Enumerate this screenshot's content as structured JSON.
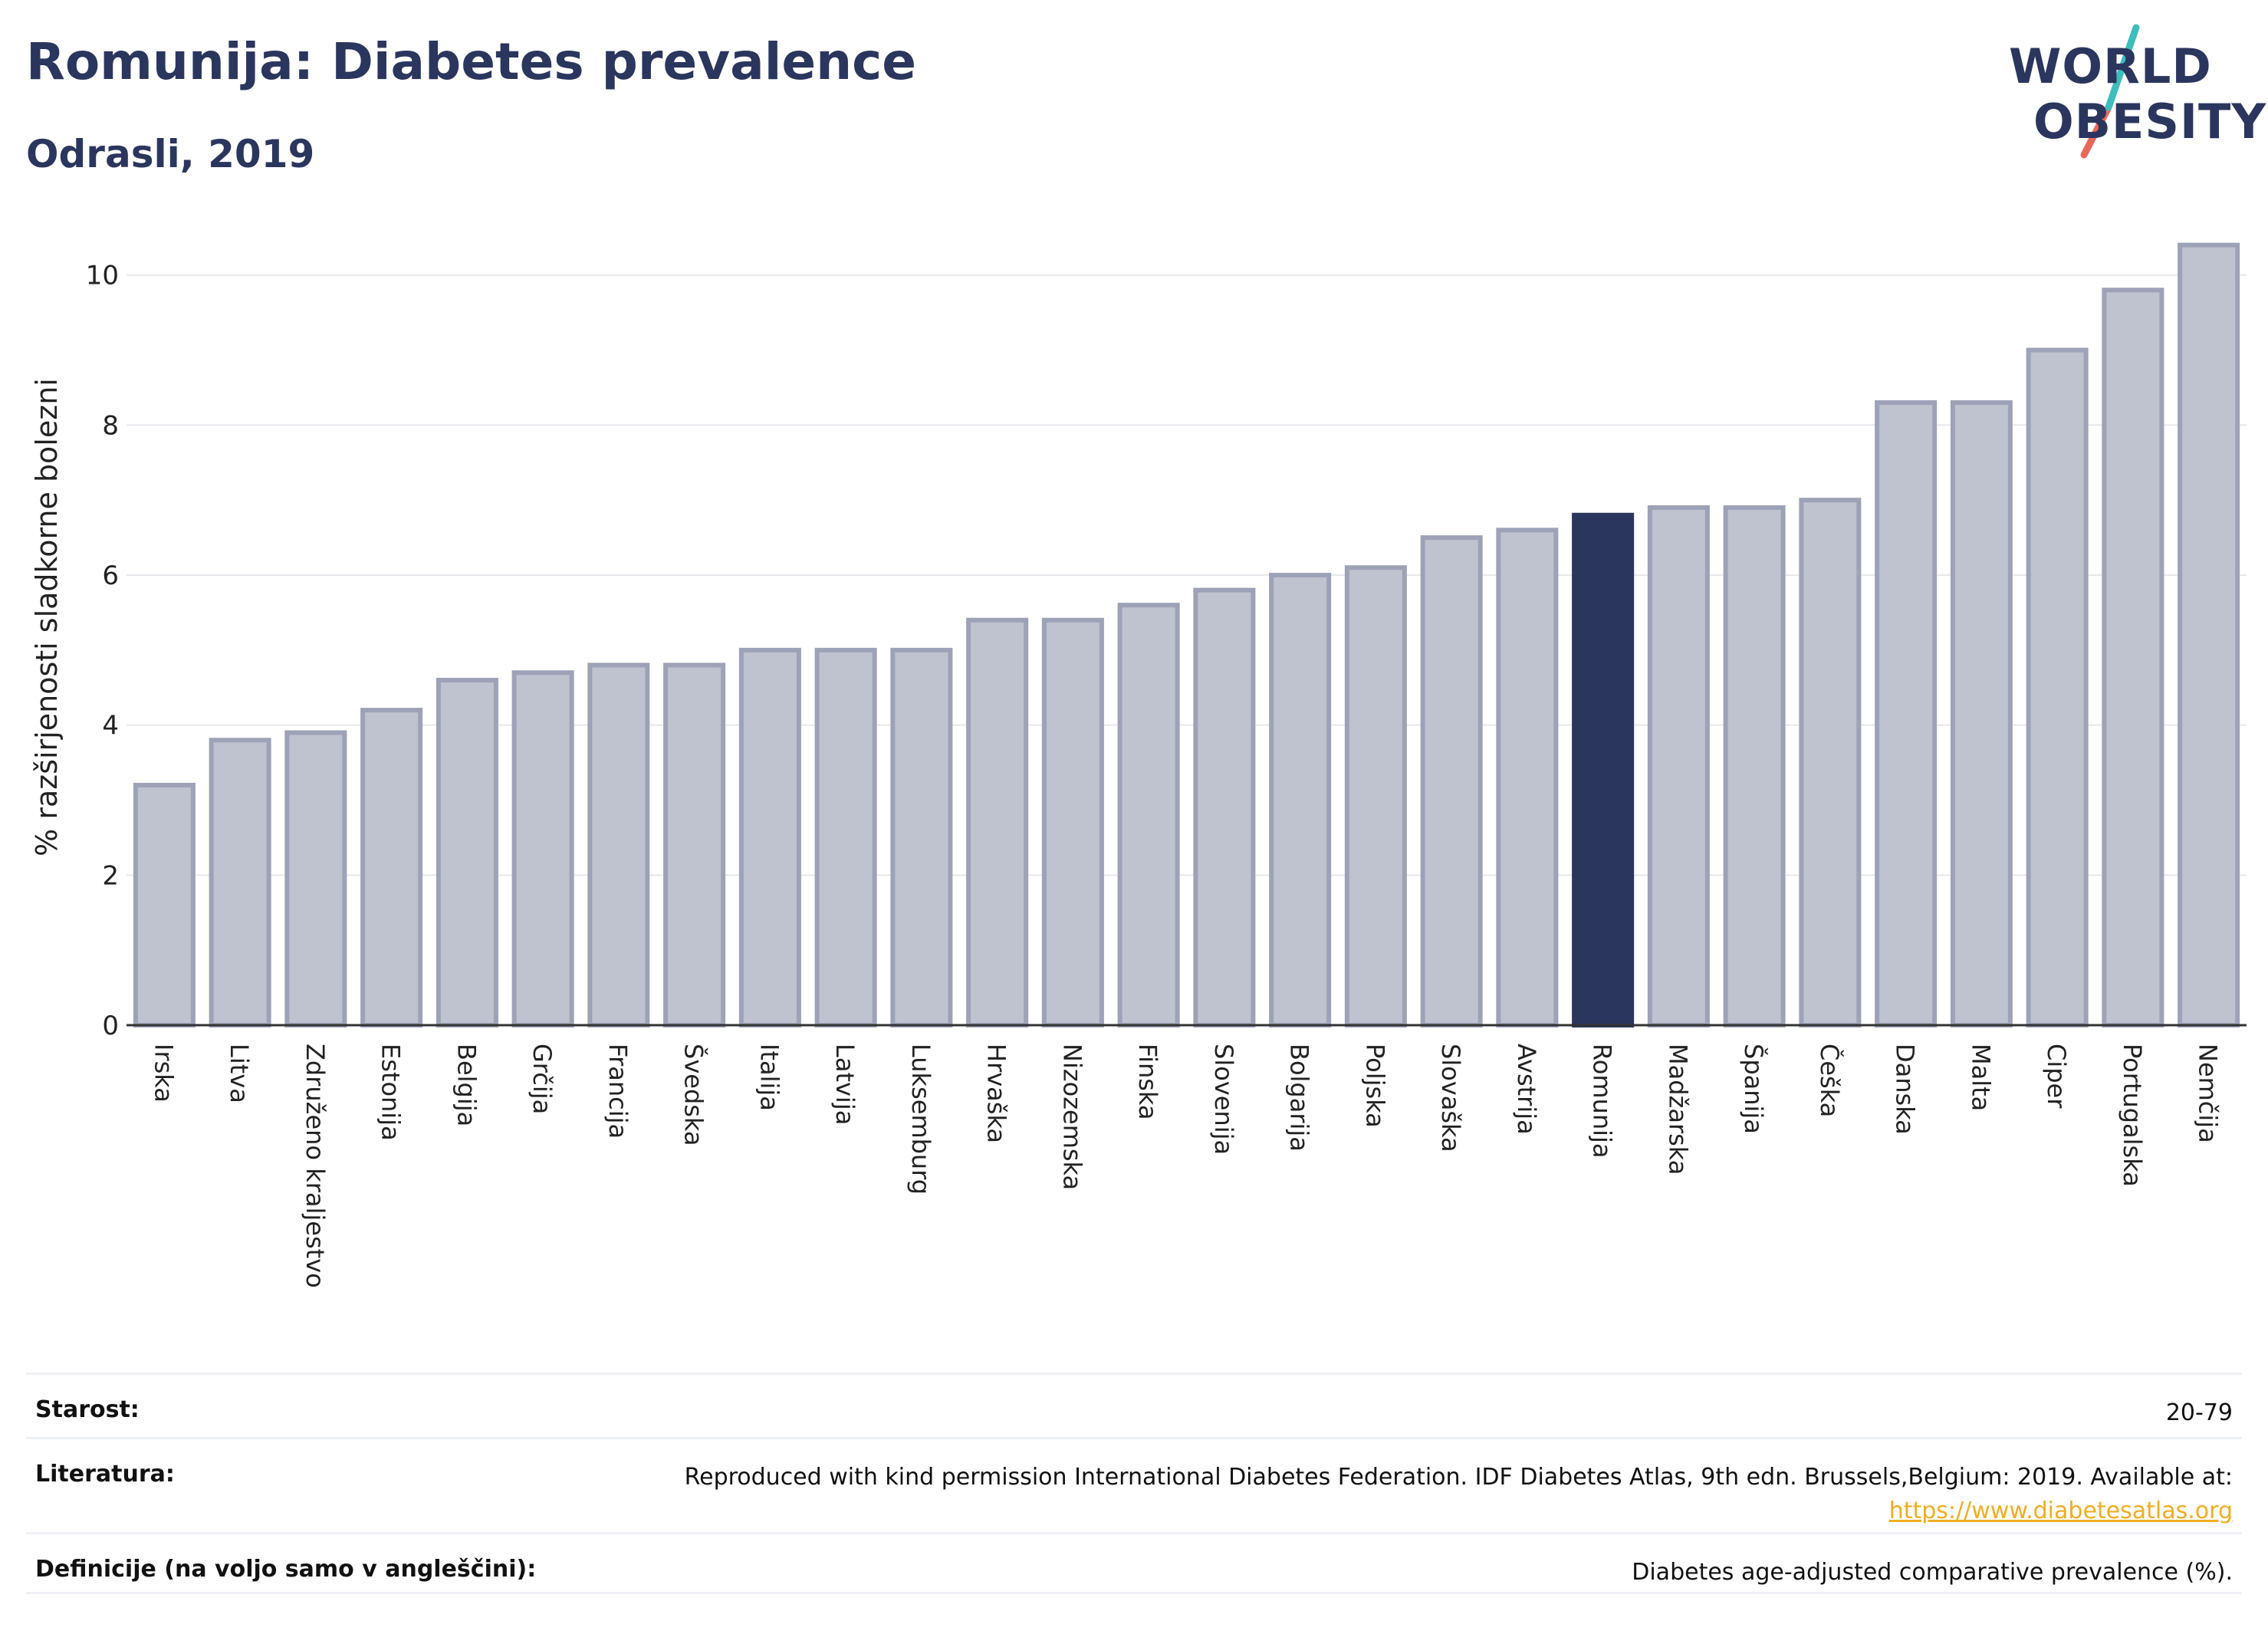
{
  "header": {
    "title": "Romunija: Diabetes prevalence",
    "subtitle": "Odrasli, 2019"
  },
  "logo": {
    "line1": "WORLD",
    "line2": "OBESITY",
    "accent_red": "#e8685a",
    "accent_teal": "#3dbdbd"
  },
  "colors": {
    "bar": "#bfc2cf",
    "bar_stroke": "#9ea2b7",
    "highlight": "#2b365e",
    "grid": "#e8e8ec"
  },
  "chart_data": {
    "type": "bar",
    "ylabel": "% razširjenosti sladkorne bolezni",
    "ylim": [
      0,
      10.6
    ],
    "yticks": [
      0,
      2,
      4,
      6,
      8,
      10
    ],
    "highlight": "Romunija",
    "categories": [
      "Irska",
      "Litva",
      "Združeno kraljestvo",
      "Estonija",
      "Belgija",
      "Grčija",
      "Francija",
      "Švedska",
      "Italija",
      "Latvija",
      "Luksemburg",
      "Hrvaška",
      "Nizozemska",
      "Finska",
      "Slovenija",
      "Bolgarija",
      "Poljska",
      "Slovaška",
      "Avstrija",
      "Romunija",
      "Madžarska",
      "Španija",
      "Češka",
      "Danska",
      "Malta",
      "Ciper",
      "Portugalska",
      "Nemčija"
    ],
    "values": [
      3.2,
      3.8,
      3.9,
      4.2,
      4.6,
      4.7,
      4.8,
      4.8,
      5.0,
      5.0,
      5.0,
      5.4,
      5.4,
      5.6,
      5.8,
      6.0,
      6.1,
      6.5,
      6.6,
      6.8,
      6.9,
      6.9,
      7.0,
      8.3,
      8.3,
      9.0,
      9.8,
      10.4
    ]
  },
  "info": {
    "age_label": "Starost:",
    "age_value": "20-79",
    "ref_label": "Literatura:",
    "ref_text": "Reproduced with kind permission International Diabetes Federation. IDF Diabetes Atlas, 9th edn. Brussels,Belgium: 2019. Available at:",
    "ref_link": "https://www.diabetesatlas.org",
    "def_label": "Definicije (na voljo samo v angleščini):",
    "def_value": "Diabetes age-adjusted comparative prevalence (%)."
  }
}
